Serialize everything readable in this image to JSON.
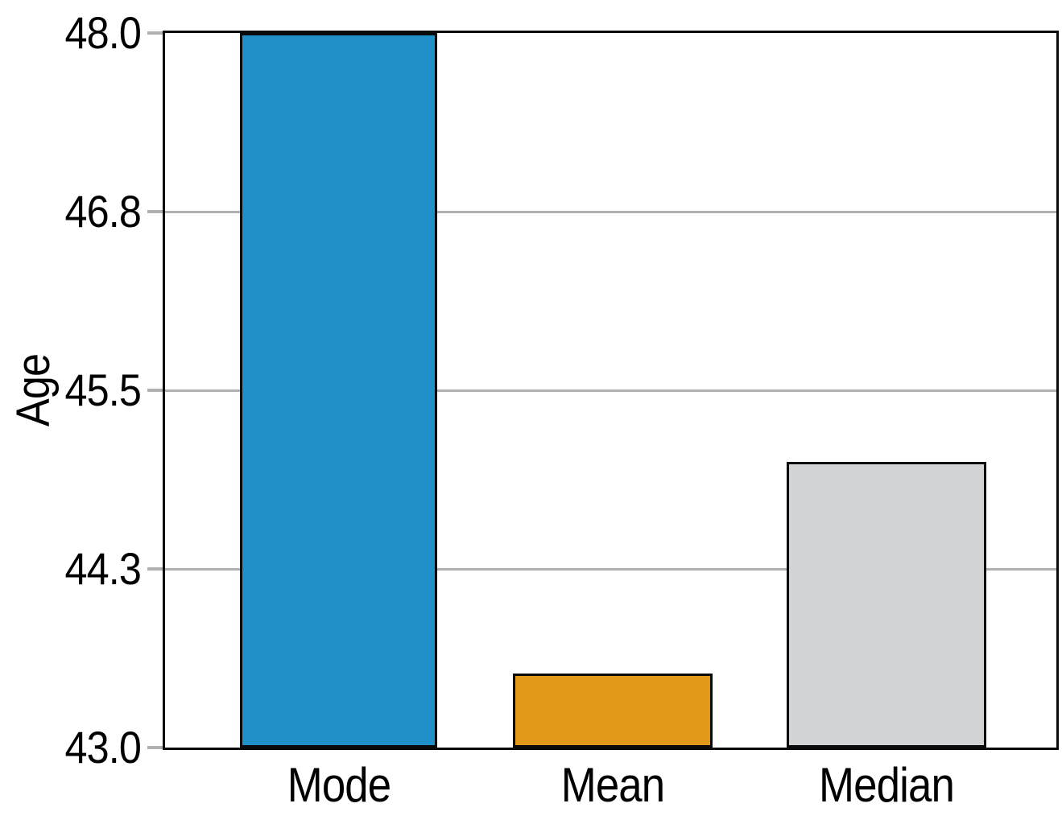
{
  "chart_data": {
    "type": "bar",
    "title": "",
    "xlabel": "",
    "ylabel": "Age",
    "categories": [
      "Mode",
      "Mean",
      "Median"
    ],
    "values": [
      48.0,
      43.52,
      45.0
    ],
    "ylim": [
      43.0,
      48.0
    ],
    "yticks": [
      {
        "value": 43.0,
        "label": "43.0"
      },
      {
        "value": 44.25,
        "label": "44.3"
      },
      {
        "value": 45.5,
        "label": "45.5"
      },
      {
        "value": 46.75,
        "label": "46.8"
      },
      {
        "value": 48.0,
        "label": "48.0"
      }
    ],
    "grid": "horizontal",
    "legend_position": "none",
    "bar_colors": [
      "#2090c8",
      "#e2981b",
      "#d2d3d4"
    ],
    "bar_edge_color": "#0a0a0a",
    "grid_color": "#b0b0b0",
    "tick_color": "#b0b0b0",
    "frame_color": "#0a0a0a",
    "text_color": "#000000",
    "background_color": "#ffffff"
  }
}
